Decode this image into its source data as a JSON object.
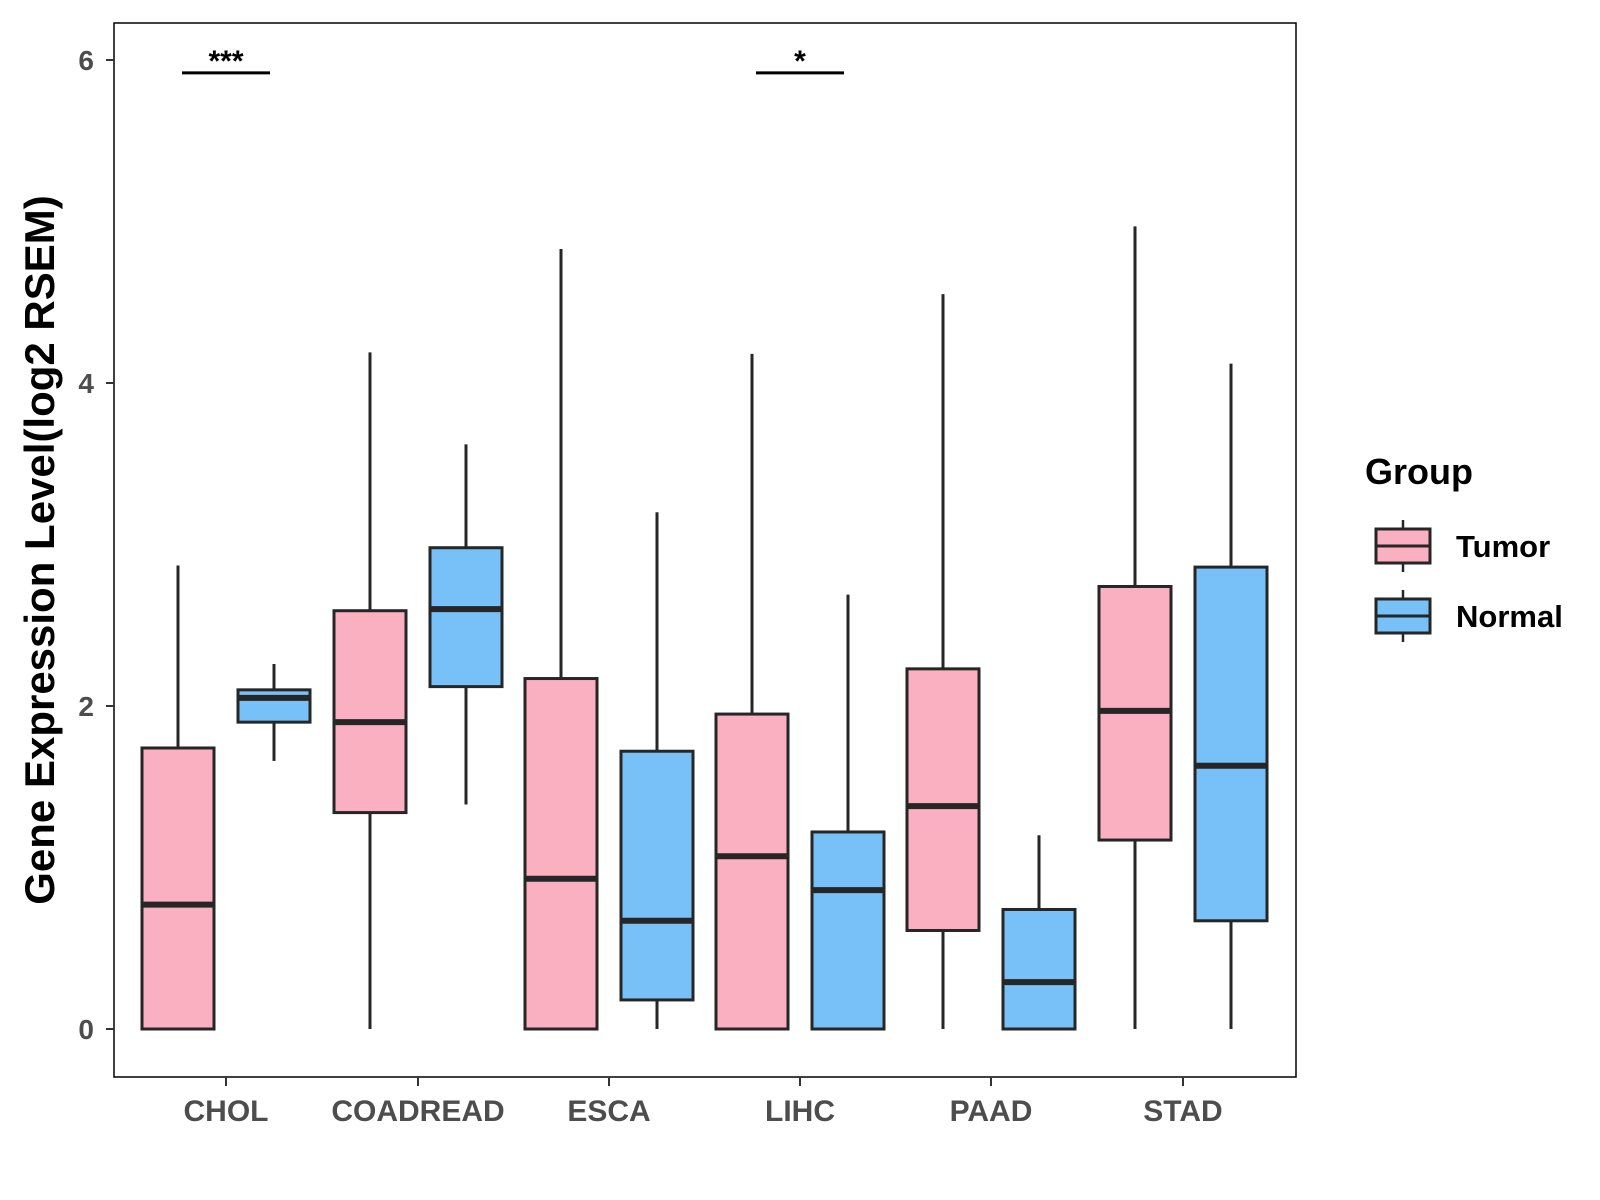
{
  "chart_data": {
    "type": "boxplot",
    "ylabel": "Gene Expression Level(log2 RSEM)",
    "xlabel": "",
    "ylim": [
      -0.3,
      6.25
    ],
    "yticks": [
      0,
      2,
      4,
      6
    ],
    "categories": [
      "CHOL",
      "COADREAD",
      "ESCA",
      "LIHC",
      "PAAD",
      "STAD"
    ],
    "legend": {
      "title": "Group",
      "position": "right",
      "entries": [
        {
          "label": "Tumor",
          "color": "#FBB0C1"
        },
        {
          "label": "Normal",
          "color": "#77C1F8"
        }
      ]
    },
    "series": [
      {
        "name": "Tumor",
        "color": "#FBB0C1",
        "boxes": [
          {
            "category": "CHOL",
            "min": 0.0,
            "q1": 0.0,
            "median": 0.77,
            "q3": 1.74,
            "max": 2.87
          },
          {
            "category": "COADREAD",
            "min": 0.0,
            "q1": 1.34,
            "median": 1.9,
            "q3": 2.59,
            "max": 4.19
          },
          {
            "category": "ESCA",
            "min": 0.0,
            "q1": 0.0,
            "median": 0.93,
            "q3": 2.17,
            "max": 4.83
          },
          {
            "category": "LIHC",
            "min": 0.0,
            "q1": 0.0,
            "median": 1.07,
            "q3": 1.95,
            "max": 4.18
          },
          {
            "category": "PAAD",
            "min": 0.0,
            "q1": 0.61,
            "median": 1.38,
            "q3": 2.23,
            "max": 4.55
          },
          {
            "category": "STAD",
            "min": 0.0,
            "q1": 1.17,
            "median": 1.97,
            "q3": 2.74,
            "max": 4.97
          }
        ]
      },
      {
        "name": "Normal",
        "color": "#77C1F8",
        "boxes": [
          {
            "category": "CHOL",
            "min": 1.66,
            "q1": 1.9,
            "median": 2.05,
            "q3": 2.1,
            "max": 2.26
          },
          {
            "category": "COADREAD",
            "min": 1.39,
            "q1": 2.12,
            "median": 2.6,
            "q3": 2.98,
            "max": 3.62
          },
          {
            "category": "ESCA",
            "min": 0.0,
            "q1": 0.18,
            "median": 0.67,
            "q3": 1.72,
            "max": 3.2
          },
          {
            "category": "LIHC",
            "min": 0.0,
            "q1": 0.0,
            "median": 0.86,
            "q3": 1.22,
            "max": 2.69
          },
          {
            "category": "PAAD",
            "min": 0.0,
            "q1": 0.0,
            "median": 0.29,
            "q3": 0.74,
            "max": 1.2
          },
          {
            "category": "STAD",
            "min": 0.0,
            "q1": 0.67,
            "median": 1.63,
            "q3": 2.86,
            "max": 4.12
          }
        ]
      }
    ],
    "annotations": [
      {
        "category": "CHOL",
        "label": "***",
        "y": 5.92
      },
      {
        "category": "LIHC",
        "label": "*",
        "y": 5.92
      }
    ]
  }
}
